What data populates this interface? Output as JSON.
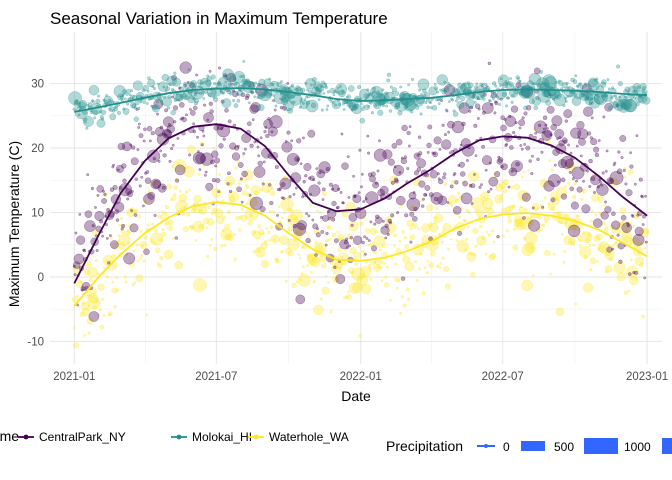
{
  "chart_data": {
    "type": "scatter",
    "title": "Seasonal Variation in Maximum Temperature",
    "xlabel": "Date",
    "ylabel": "Maximum Temperature (C)",
    "x_ticks": [
      "2021-01",
      "2021-07",
      "2022-01",
      "2022-07",
      "2023-01"
    ],
    "xlim": [
      "2020-12-01",
      "2023-01-20"
    ],
    "y_ticks": [
      -10,
      0,
      10,
      20,
      30
    ],
    "ylim": [
      -13.5,
      38
    ],
    "grid": true,
    "legend_position": "bottom",
    "color_legend": {
      "title": "name",
      "entries": [
        "CentralPark_NY",
        "Molokai_HI",
        "Waterhole_WA"
      ]
    },
    "size_legend": {
      "title": "Precipitation",
      "labels": [
        "0",
        "500",
        "1000"
      ]
    },
    "colors": {
      "CentralPark_NY": "#440154",
      "Molokai_HI": "#21908C",
      "Waterhole_WA": "#FDE725",
      "size_legend_fill": "#3366FF"
    },
    "series": [
      {
        "name": "CentralPark_NY",
        "smooth": {
          "x": [
            "2021-01-01",
            "2021-02-01",
            "2021-03-01",
            "2021-04-01",
            "2021-05-01",
            "2021-06-01",
            "2021-07-01",
            "2021-08-01",
            "2021-09-01",
            "2021-10-01",
            "2021-11-01",
            "2021-12-01",
            "2022-01-01",
            "2022-02-01",
            "2022-03-01",
            "2022-04-01",
            "2022-05-01",
            "2022-06-01",
            "2022-07-01",
            "2022-08-01",
            "2022-09-01",
            "2022-10-01",
            "2022-11-01",
            "2022-12-01",
            "2023-01-01"
          ],
          "y": [
            -1.0,
            6.5,
            13.0,
            18.0,
            21.5,
            23.3,
            23.7,
            23.0,
            20.3,
            15.8,
            11.5,
            10.2,
            10.5,
            12.2,
            14.5,
            16.7,
            19.2,
            21.2,
            21.8,
            21.6,
            20.4,
            18.5,
            15.6,
            12.4,
            9.5
          ]
        }
      },
      {
        "name": "Molokai_HI",
        "smooth": {
          "x": [
            "2021-01-01",
            "2021-02-01",
            "2021-03-01",
            "2021-04-01",
            "2021-05-01",
            "2021-06-01",
            "2021-07-01",
            "2021-08-01",
            "2021-09-01",
            "2021-10-01",
            "2021-11-01",
            "2021-12-01",
            "2022-01-01",
            "2022-02-01",
            "2022-03-01",
            "2022-04-01",
            "2022-05-01",
            "2022-06-01",
            "2022-07-01",
            "2022-08-01",
            "2022-09-01",
            "2022-10-01",
            "2022-11-01",
            "2022-12-01",
            "2023-01-01"
          ],
          "y": [
            25.6,
            26.3,
            27.0,
            27.8,
            28.5,
            29.0,
            29.2,
            29.3,
            29.1,
            28.7,
            28.2,
            27.6,
            27.3,
            27.4,
            27.6,
            27.8,
            28.2,
            28.7,
            29.0,
            29.1,
            29.0,
            28.9,
            28.7,
            28.4,
            28.2
          ]
        }
      },
      {
        "name": "Waterhole_WA",
        "smooth": {
          "x": [
            "2021-01-01",
            "2021-02-01",
            "2021-03-01",
            "2021-04-01",
            "2021-05-01",
            "2021-06-01",
            "2021-07-01",
            "2021-08-01",
            "2021-09-01",
            "2021-10-01",
            "2021-11-01",
            "2021-12-01",
            "2022-01-01",
            "2022-02-01",
            "2022-03-01",
            "2022-04-01",
            "2022-05-01",
            "2022-06-01",
            "2022-07-01",
            "2022-08-01",
            "2022-09-01",
            "2022-10-01",
            "2022-11-01",
            "2022-12-01",
            "2023-01-01"
          ],
          "y": [
            -4.5,
            0.0,
            3.5,
            6.8,
            9.2,
            11.0,
            11.6,
            11.2,
            9.5,
            6.8,
            4.3,
            2.7,
            2.5,
            3.0,
            4.0,
            5.5,
            7.5,
            9.0,
            9.7,
            9.9,
            9.5,
            8.7,
            7.3,
            5.3,
            3.2
          ]
        }
      }
    ]
  }
}
